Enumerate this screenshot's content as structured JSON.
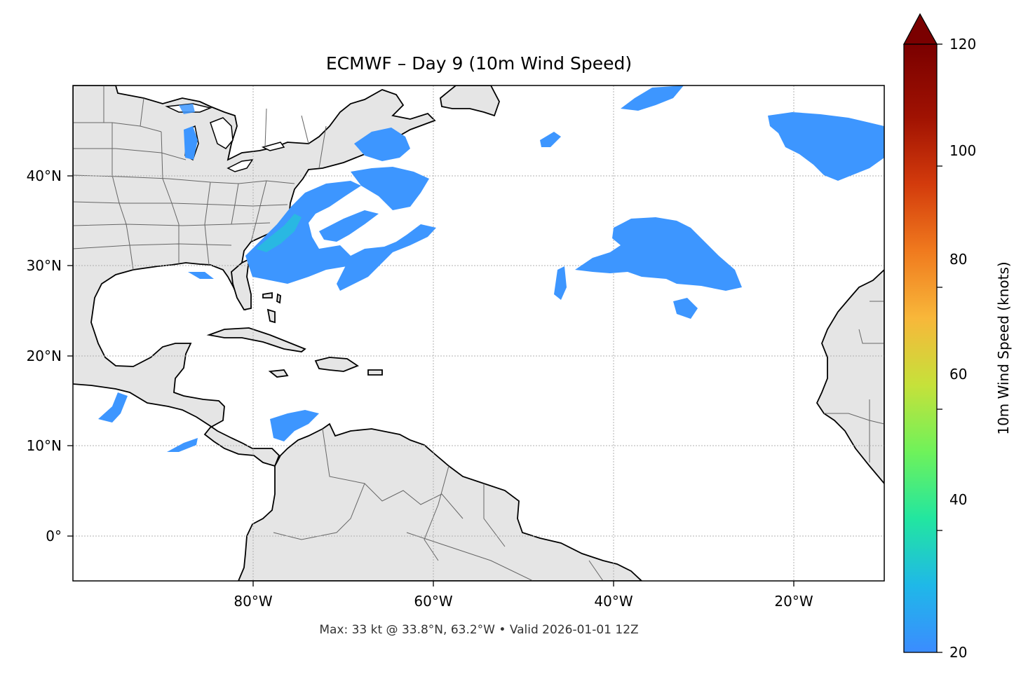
{
  "map": {
    "title": "ECMWF – Day 9 (10m Wind Speed)",
    "footnote": "Max: 33 kt @ 33.8°N, 63.2°W • Valid 2026-01-01 12Z",
    "lon_ticks": [
      "80°W",
      "60°W",
      "40°W",
      "20°W"
    ],
    "lat_ticks": [
      "40°N",
      "30°N",
      "20°N",
      "10°N",
      "0°"
    ],
    "extent": {
      "lon": [
        -100,
        -10
      ],
      "lat": [
        -5,
        50
      ]
    },
    "gridlines": true,
    "colors": {
      "land": "#e5e5e5",
      "ocean": "#ffffff",
      "coast": "#000000",
      "borders": "#666666",
      "wind_low": "#3d96ff",
      "wind_mid": "#21c6d6"
    }
  },
  "colorbar": {
    "label": "10m Wind Speed (knots)",
    "ticks": [
      "20",
      "40",
      "60",
      "80",
      "100",
      "120"
    ],
    "range": [
      20,
      120
    ],
    "extend": "max",
    "stops": [
      "#3b8cff",
      "#1fb8e8",
      "#22e6a0",
      "#6ff25a",
      "#c6e13a",
      "#f8b73a",
      "#f07a1e",
      "#d33b0c",
      "#a01202",
      "#6f0000"
    ]
  }
}
